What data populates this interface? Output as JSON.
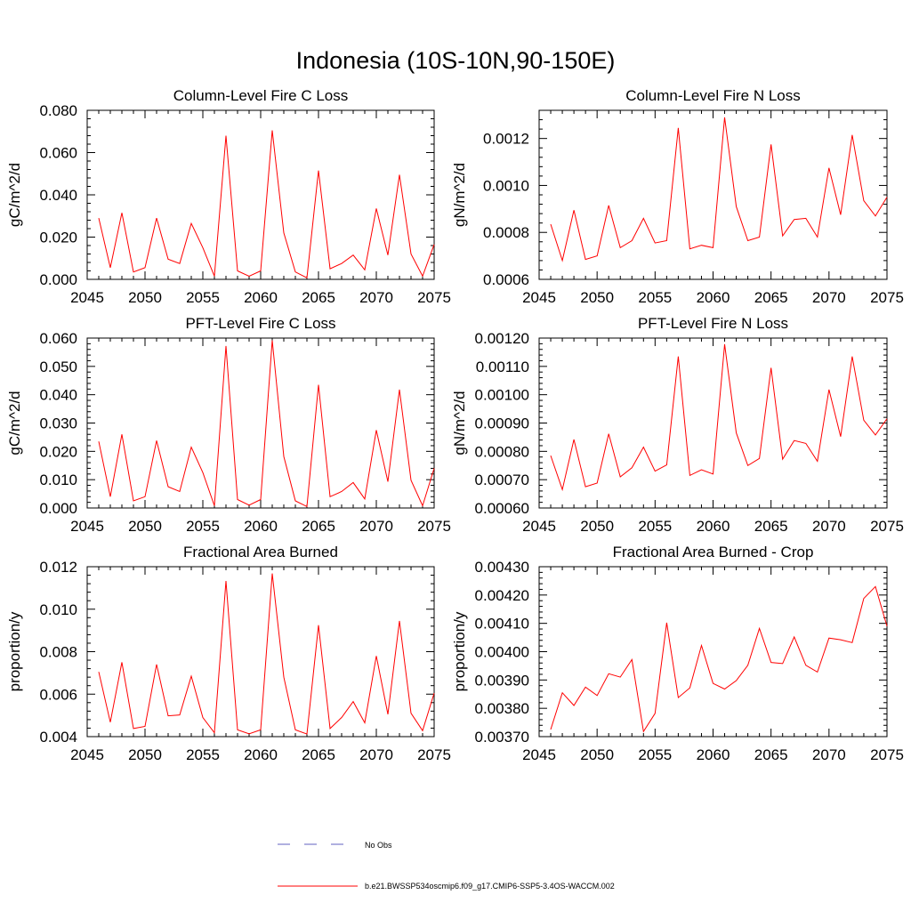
{
  "figure": {
    "title": "Indonesia (10S-10N,90-150E)",
    "line_color": "#ff0000",
    "obs_color": "#6060c0"
  },
  "legend": {
    "no_obs_label": "No Obs",
    "run_label": "b.e21.BWSSP534oscmip6.f09_g17.CMIP6-SSP5-3.4OS-WACCM.002"
  },
  "chart_data": [
    {
      "id": "fire-c-column",
      "type": "line",
      "title": "Column-Level Fire C Loss",
      "ylabel": "gC/m^2/d",
      "xlim": [
        2045,
        2075
      ],
      "ylim": [
        0.0,
        0.08
      ],
      "xticks": [
        "2045",
        "2050",
        "2055",
        "2060",
        "2065",
        "2070",
        "2075"
      ],
      "yticks": [
        "0.000",
        "0.020",
        "0.040",
        "0.060",
        "0.080"
      ],
      "x": [
        2046,
        2047,
        2048,
        2049,
        2050,
        2051,
        2052,
        2053,
        2054,
        2055,
        2056,
        2057,
        2058,
        2059,
        2060,
        2061,
        2062,
        2063,
        2064,
        2065,
        2066,
        2067,
        2068,
        2069,
        2070,
        2071,
        2072,
        2073,
        2074,
        2075
      ],
      "values": [
        0.029,
        0.0055,
        0.0315,
        0.0035,
        0.0055,
        0.029,
        0.0095,
        0.0075,
        0.0265,
        0.015,
        0.0015,
        0.068,
        0.004,
        0.0015,
        0.004,
        0.0705,
        0.022,
        0.0035,
        0.0007,
        0.0515,
        0.005,
        0.0075,
        0.0115,
        0.0045,
        0.0335,
        0.0115,
        0.0495,
        0.012,
        0.0015,
        0.0165
      ]
    },
    {
      "id": "fire-n-column",
      "type": "line",
      "title": "Column-Level Fire N Loss",
      "ylabel": "gN/m^2/d",
      "xlim": [
        2045,
        2075
      ],
      "ylim": [
        0.0006,
        0.00132
      ],
      "xticks": [
        "2045",
        "2050",
        "2055",
        "2060",
        "2065",
        "2070",
        "2075"
      ],
      "yticks": [
        "0.0006",
        "0.0008",
        "0.0010",
        "0.0012"
      ],
      "x": [
        2046,
        2047,
        2048,
        2049,
        2050,
        2051,
        2052,
        2053,
        2054,
        2055,
        2056,
        2057,
        2058,
        2059,
        2060,
        2061,
        2062,
        2063,
        2064,
        2065,
        2066,
        2067,
        2068,
        2069,
        2070,
        2071,
        2072,
        2073,
        2074,
        2075
      ],
      "values": [
        0.000835,
        0.00068,
        0.000895,
        0.000685,
        0.0007,
        0.000915,
        0.000735,
        0.000765,
        0.00086,
        0.000755,
        0.000765,
        0.001245,
        0.00073,
        0.000745,
        0.000735,
        0.00129,
        0.00091,
        0.000765,
        0.00078,
        0.001175,
        0.000785,
        0.000855,
        0.00086,
        0.00078,
        0.001075,
        0.000875,
        0.001215,
        0.000935,
        0.00087,
        0.00095
      ]
    },
    {
      "id": "fire-c-pft",
      "type": "line",
      "title": "PFT-Level Fire C Loss",
      "ylabel": "gC/m^2/d",
      "xlim": [
        2045,
        2075
      ],
      "ylim": [
        0.0,
        0.06
      ],
      "xticks": [
        "2045",
        "2050",
        "2055",
        "2060",
        "2065",
        "2070",
        "2075"
      ],
      "yticks": [
        "0.000",
        "0.010",
        "0.020",
        "0.030",
        "0.040",
        "0.050",
        "0.060"
      ],
      "x": [
        2046,
        2047,
        2048,
        2049,
        2050,
        2051,
        2052,
        2053,
        2054,
        2055,
        2056,
        2057,
        2058,
        2059,
        2060,
        2061,
        2062,
        2063,
        2064,
        2065,
        2066,
        2067,
        2068,
        2069,
        2070,
        2071,
        2072,
        2073,
        2074,
        2075
      ],
      "values": [
        0.0235,
        0.004,
        0.026,
        0.0025,
        0.004,
        0.0238,
        0.0075,
        0.0058,
        0.0215,
        0.0125,
        0.0008,
        0.0572,
        0.003,
        0.001,
        0.003,
        0.0592,
        0.0182,
        0.0025,
        0.0005,
        0.0435,
        0.004,
        0.0058,
        0.009,
        0.0032,
        0.0275,
        0.0093,
        0.0418,
        0.0098,
        0.0008,
        0.014
      ]
    },
    {
      "id": "fire-n-pft",
      "type": "line",
      "title": "PFT-Level Fire N Loss",
      "ylabel": "gN/m^2/d",
      "xlim": [
        2045,
        2075
      ],
      "ylim": [
        0.0006,
        0.0012
      ],
      "xticks": [
        "2045",
        "2050",
        "2055",
        "2060",
        "2065",
        "2070",
        "2075"
      ],
      "yticks": [
        "0.00060",
        "0.00070",
        "0.00080",
        "0.00090",
        "0.00100",
        "0.00110",
        "0.00120"
      ],
      "x": [
        2046,
        2047,
        2048,
        2049,
        2050,
        2051,
        2052,
        2053,
        2054,
        2055,
        2056,
        2057,
        2058,
        2059,
        2060,
        2061,
        2062,
        2063,
        2064,
        2065,
        2066,
        2067,
        2068,
        2069,
        2070,
        2071,
        2072,
        2073,
        2074,
        2075
      ],
      "values": [
        0.000785,
        0.000665,
        0.000842,
        0.000675,
        0.000688,
        0.000862,
        0.00071,
        0.000742,
        0.000815,
        0.00073,
        0.000752,
        0.001135,
        0.000715,
        0.000735,
        0.00072,
        0.001178,
        0.000865,
        0.00075,
        0.000775,
        0.001095,
        0.000772,
        0.000838,
        0.000828,
        0.000765,
        0.001018,
        0.000852,
        0.001135,
        0.00091,
        0.000858,
        0.000915
      ]
    },
    {
      "id": "area-burned",
      "type": "line",
      "title": "Fractional Area Burned",
      "ylabel": "proportion/y",
      "xlim": [
        2045,
        2075
      ],
      "ylim": [
        0.004,
        0.012
      ],
      "xticks": [
        "2045",
        "2050",
        "2055",
        "2060",
        "2065",
        "2070",
        "2075"
      ],
      "yticks": [
        "0.004",
        "0.006",
        "0.008",
        "0.010",
        "0.012"
      ],
      "x": [
        2046,
        2047,
        2048,
        2049,
        2050,
        2051,
        2052,
        2053,
        2054,
        2055,
        2056,
        2057,
        2058,
        2059,
        2060,
        2061,
        2062,
        2063,
        2064,
        2065,
        2066,
        2067,
        2068,
        2069,
        2070,
        2071,
        2072,
        2073,
        2074,
        2075
      ],
      "values": [
        0.00705,
        0.00468,
        0.0075,
        0.00438,
        0.00448,
        0.0074,
        0.00498,
        0.00502,
        0.00685,
        0.0049,
        0.00418,
        0.01133,
        0.00432,
        0.00413,
        0.00432,
        0.01168,
        0.0068,
        0.00432,
        0.00412,
        0.00925,
        0.00438,
        0.0049,
        0.00565,
        0.00465,
        0.0078,
        0.00505,
        0.00945,
        0.0051,
        0.00428,
        0.00605
      ]
    },
    {
      "id": "area-burned-crop",
      "type": "line",
      "title": "Fractional Area Burned - Crop",
      "ylabel": "proportion/y",
      "xlim": [
        2045,
        2075
      ],
      "ylim": [
        0.0037,
        0.0043
      ],
      "xticks": [
        "2045",
        "2050",
        "2055",
        "2060",
        "2065",
        "2070",
        "2075"
      ],
      "yticks": [
        "0.00370",
        "0.00380",
        "0.00390",
        "0.00400",
        "0.00410",
        "0.00420",
        "0.00430"
      ],
      "x": [
        2046,
        2047,
        2048,
        2049,
        2050,
        2051,
        2052,
        2053,
        2054,
        2055,
        2056,
        2057,
        2058,
        2059,
        2060,
        2061,
        2062,
        2063,
        2064,
        2065,
        2066,
        2067,
        2068,
        2069,
        2070,
        2071,
        2072,
        2073,
        2074,
        2075
      ],
      "values": [
        0.003725,
        0.003855,
        0.00381,
        0.003875,
        0.003845,
        0.003922,
        0.00391,
        0.003972,
        0.003718,
        0.003782,
        0.004102,
        0.003838,
        0.003872,
        0.004022,
        0.003888,
        0.003868,
        0.003898,
        0.003952,
        0.004082,
        0.003962,
        0.003958,
        0.004052,
        0.003952,
        0.003928,
        0.004048,
        0.004042,
        0.004032,
        0.004188,
        0.00423,
        0.00409
      ]
    }
  ]
}
